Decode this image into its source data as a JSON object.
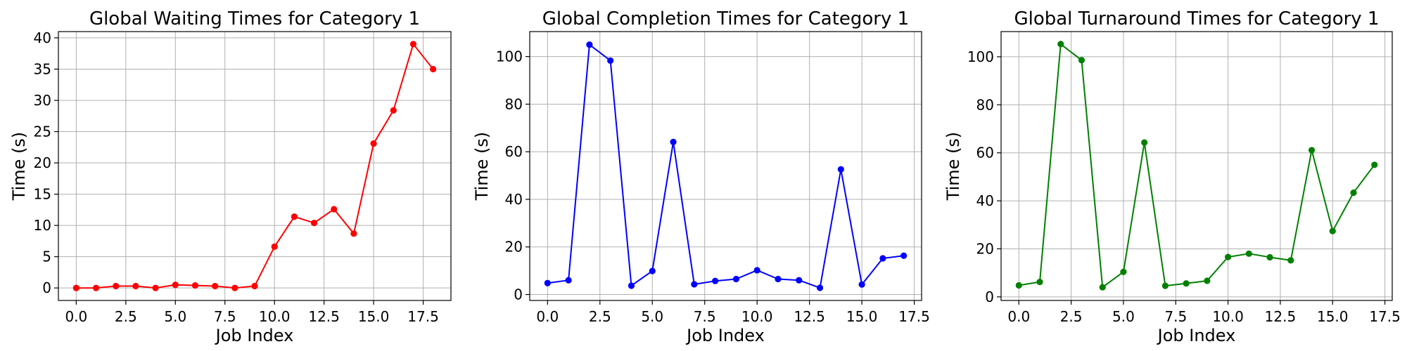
{
  "chart_data": [
    {
      "type": "line",
      "title": "Global Waiting Times for Category 1",
      "xlabel": "Job Index",
      "ylabel": "Time (s)",
      "color": "#ff0000",
      "marker": "circle",
      "grid": true,
      "xlim": [
        -0.9,
        18.9
      ],
      "ylim": [
        -2.0,
        41.0
      ],
      "xticks": [
        0.0,
        2.5,
        5.0,
        7.5,
        10.0,
        12.5,
        15.0,
        17.5
      ],
      "xtick_labels": [
        "0.0",
        "2.5",
        "5.0",
        "7.5",
        "10.0",
        "12.5",
        "15.0",
        "17.5"
      ],
      "yticks": [
        0,
        5,
        10,
        15,
        20,
        25,
        30,
        35,
        40
      ],
      "ytick_labels": [
        "0",
        "5",
        "10",
        "15",
        "20",
        "25",
        "30",
        "35",
        "40"
      ],
      "x": [
        0,
        1,
        2,
        3,
        4,
        5,
        6,
        7,
        8,
        9,
        10,
        11,
        12,
        13,
        14,
        15,
        16,
        17,
        18
      ],
      "y": [
        0.0,
        0.0,
        0.3,
        0.3,
        0.0,
        0.5,
        0.4,
        0.3,
        0.0,
        0.3,
        6.6,
        11.4,
        10.4,
        12.6,
        8.7,
        23.1,
        28.4,
        39.0,
        35.0
      ]
    },
    {
      "type": "line",
      "title": "Global Completion Times for Category 1",
      "xlabel": "Job Index",
      "ylabel": "Time (s)",
      "color": "#0000ff",
      "marker": "circle",
      "grid": true,
      "xlim": [
        -0.85,
        17.85
      ],
      "ylim": [
        -2.5,
        110.5
      ],
      "xticks": [
        0.0,
        2.5,
        5.0,
        7.5,
        10.0,
        12.5,
        15.0,
        17.5
      ],
      "xtick_labels": [
        "0.0",
        "2.5",
        "5.0",
        "7.5",
        "10.0",
        "12.5",
        "15.0",
        "17.5"
      ],
      "yticks": [
        0,
        20,
        40,
        60,
        80,
        100
      ],
      "ytick_labels": [
        "0",
        "20",
        "40",
        "60",
        "80",
        "100"
      ],
      "x": [
        0,
        1,
        2,
        3,
        4,
        5,
        6,
        7,
        8,
        9,
        10,
        11,
        12,
        13,
        14,
        15,
        16,
        17
      ],
      "y": [
        4.8,
        6.0,
        105.0,
        98.3,
        3.7,
        9.9,
        64.1,
        4.3,
        5.7,
        6.5,
        10.2,
        6.5,
        6.0,
        2.8,
        52.6,
        4.2,
        15.2,
        16.3
      ]
    },
    {
      "type": "line",
      "title": "Global Turnaround Times for Category 1",
      "xlabel": "Job Index",
      "ylabel": "Time (s)",
      "color": "#008000",
      "marker": "circle",
      "grid": true,
      "xlim": [
        -0.85,
        17.85
      ],
      "ylim": [
        -1.5,
        110.5
      ],
      "xticks": [
        0.0,
        2.5,
        5.0,
        7.5,
        10.0,
        12.5,
        15.0,
        17.5
      ],
      "xtick_labels": [
        "0.0",
        "2.5",
        "5.0",
        "7.5",
        "10.0",
        "12.5",
        "15.0",
        "17.5"
      ],
      "yticks": [
        0,
        20,
        40,
        60,
        80,
        100
      ],
      "ytick_labels": [
        "0",
        "20",
        "40",
        "60",
        "80",
        "100"
      ],
      "x": [
        0,
        1,
        2,
        3,
        4,
        5,
        6,
        7,
        8,
        9,
        10,
        11,
        12,
        13,
        14,
        15,
        16,
        17
      ],
      "y": [
        4.8,
        6.2,
        105.3,
        98.6,
        4.0,
        10.4,
        64.3,
        4.6,
        5.6,
        6.7,
        16.6,
        18.0,
        16.5,
        15.2,
        61.1,
        27.4,
        43.4,
        55.0
      ]
    }
  ]
}
